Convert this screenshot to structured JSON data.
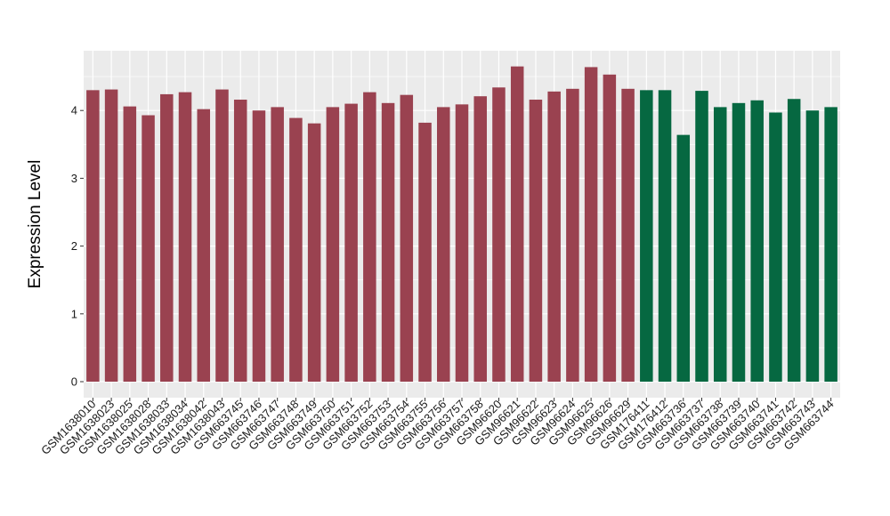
{
  "chart_data": {
    "type": "bar",
    "title": "",
    "xlabel": "",
    "ylabel": "Expression Level",
    "ylim": [
      0,
      4.85
    ],
    "yticks": [
      0,
      1,
      2,
      3,
      4
    ],
    "grid": true,
    "legend": "none",
    "background_color": "#ebebeb",
    "grid_color": "#ffffff",
    "categories": [
      "GSM1638010",
      "GSM1638023",
      "GSM1638025",
      "GSM1638028",
      "GSM1638033",
      "GSM1638034",
      "GSM1638042",
      "GSM1638043",
      "GSM663745",
      "GSM663746",
      "GSM663747",
      "GSM663748",
      "GSM663749",
      "GSM663750",
      "GSM663751",
      "GSM663752",
      "GSM663753",
      "GSM663754",
      "GSM663755",
      "GSM663756",
      "GSM663757",
      "GSM663758",
      "GSM96620",
      "GSM96621",
      "GSM96622",
      "GSM96623",
      "GSM96624",
      "GSM96625",
      "GSM96626",
      "GSM96629",
      "GSM176411",
      "GSM176412",
      "GSM663736",
      "GSM663737",
      "GSM663738",
      "GSM663739",
      "GSM663740",
      "GSM663741",
      "GSM663742",
      "GSM663743",
      "GSM663744"
    ],
    "values": [
      4.3,
      4.31,
      4.06,
      3.93,
      4.24,
      4.27,
      4.02,
      4.31,
      4.16,
      4.0,
      4.05,
      3.89,
      3.81,
      4.05,
      4.1,
      4.27,
      4.11,
      4.23,
      3.82,
      4.05,
      4.09,
      4.21,
      4.34,
      4.65,
      4.16,
      4.28,
      4.32,
      4.64,
      4.53,
      4.32,
      4.3,
      4.3,
      3.64,
      4.29,
      4.05,
      4.11,
      4.15,
      3.97,
      4.17,
      4.0,
      4.05
    ],
    "group_colors": {
      "group1": "#9a4250",
      "group2": "#066841"
    },
    "groups": [
      "group1",
      "group1",
      "group1",
      "group1",
      "group1",
      "group1",
      "group1",
      "group1",
      "group1",
      "group1",
      "group1",
      "group1",
      "group1",
      "group1",
      "group1",
      "group1",
      "group1",
      "group1",
      "group1",
      "group1",
      "group1",
      "group1",
      "group1",
      "group1",
      "group1",
      "group1",
      "group1",
      "group1",
      "group1",
      "group1",
      "group2",
      "group2",
      "group2",
      "group2",
      "group2",
      "group2",
      "group2",
      "group2",
      "group2",
      "group2",
      "group2"
    ]
  }
}
